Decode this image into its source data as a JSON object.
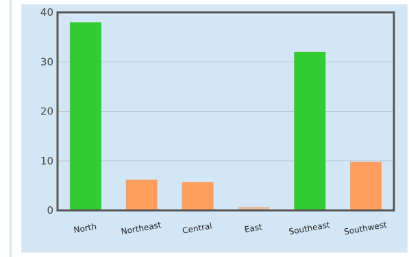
{
  "chart_data": {
    "type": "bar",
    "title": "",
    "xlabel": "",
    "ylabel": "",
    "categories": [
      "North",
      "Northeast",
      "Central",
      "East",
      "Southeast",
      "Southwest"
    ],
    "values": [
      38,
      6.2,
      5.7,
      0.7,
      32,
      9.8
    ],
    "bar_colors": [
      "#33cc33",
      "#ff9e5e",
      "#ff9e5e",
      "#e9b9a0",
      "#33cc33",
      "#ff9e5e"
    ],
    "ylim": [
      0,
      40
    ],
    "yticks": [
      0,
      10,
      20,
      30,
      40
    ],
    "grid": true
  }
}
